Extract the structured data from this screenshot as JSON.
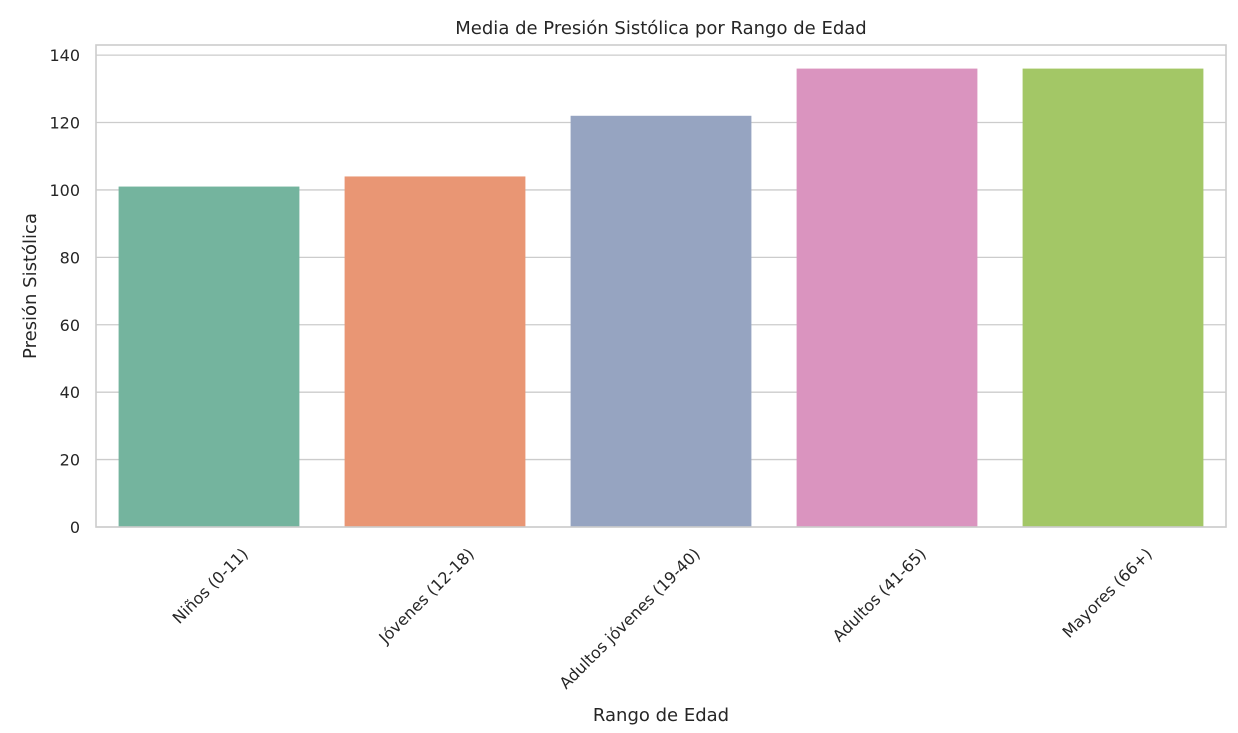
{
  "chart_data": {
    "type": "bar",
    "title": "Media de Presión Sistólica por Rango de Edad",
    "xlabel": "Rango de Edad",
    "ylabel": "Presión Sistólica",
    "categories": [
      "Niños (0-11)",
      "Jóvenes (12-18)",
      "Adultos jóvenes (19-40)",
      "Adultos (41-65)",
      "Mayores (66+)"
    ],
    "values": [
      101,
      104,
      122,
      136,
      136
    ],
    "colors": [
      "#74b49e",
      "#e99674",
      "#96a4c1",
      "#da94bf",
      "#a3c766"
    ],
    "ylim": [
      0,
      143
    ],
    "yticks": [
      0,
      20,
      40,
      60,
      80,
      100,
      120,
      140
    ],
    "grid": "horizontal",
    "x_tick_rotation": -45
  }
}
